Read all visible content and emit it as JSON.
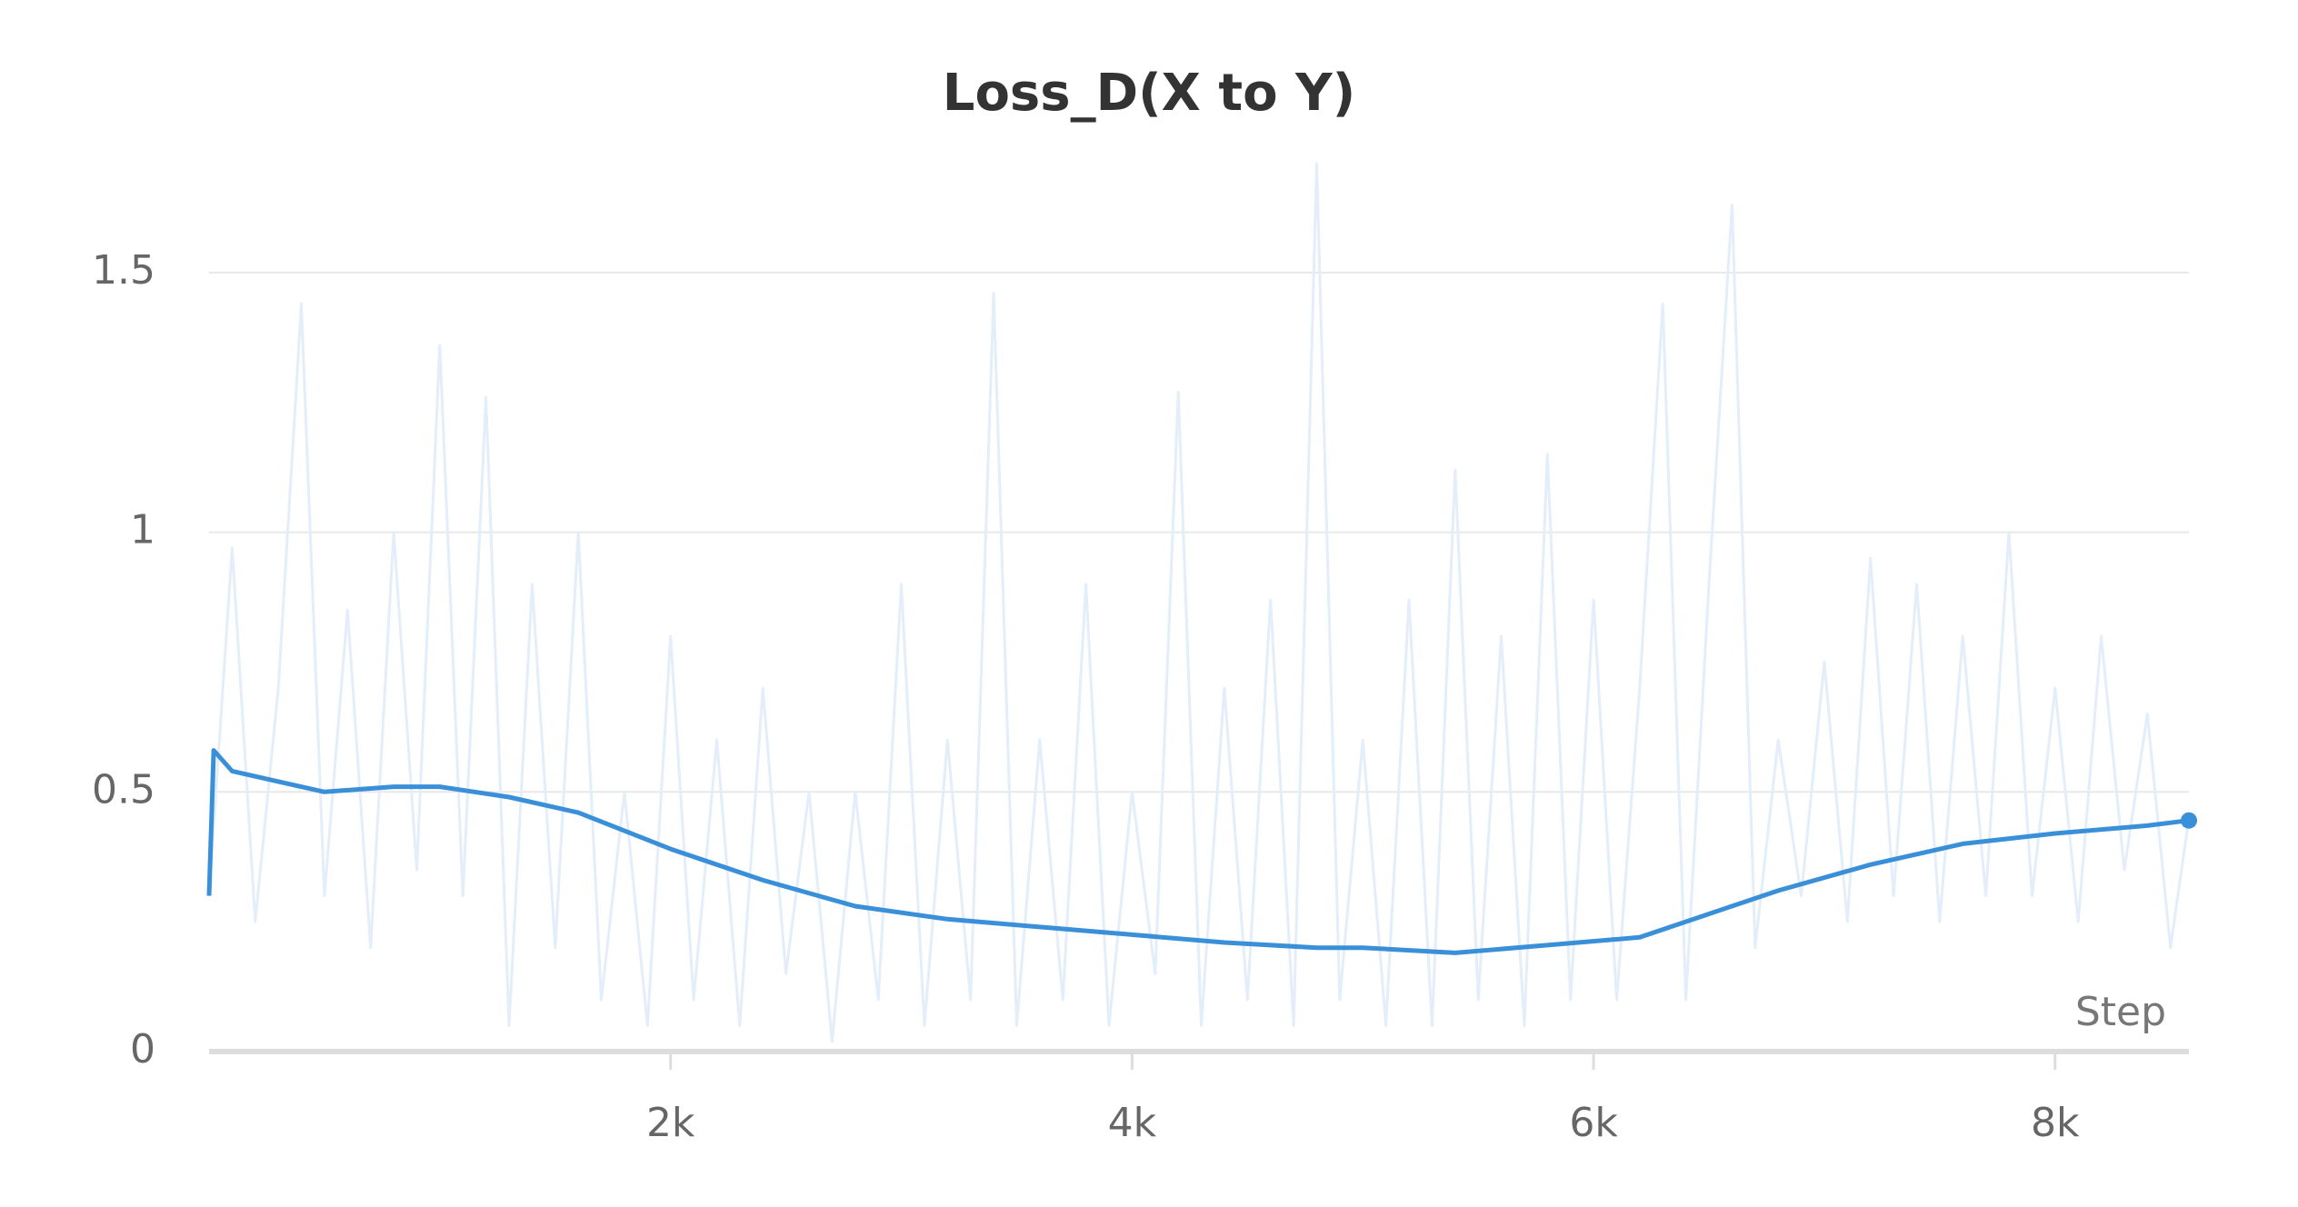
{
  "chart_data": {
    "type": "line",
    "title": "Loss_D(X to Y)",
    "x_label": "Step",
    "xlim": [
      0,
      8580
    ],
    "ylim": [
      0,
      1.75
    ],
    "xticks": [
      {
        "value": 2000,
        "label": "2k"
      },
      {
        "value": 4000,
        "label": "4k"
      },
      {
        "value": 6000,
        "label": "6k"
      },
      {
        "value": 8000,
        "label": "8k"
      }
    ],
    "yticks": [
      0,
      0.5,
      1,
      1.5
    ],
    "grid": true,
    "series": [
      {
        "color": "#e3eefa",
        "x": [
          0,
          100,
          200,
          300,
          400,
          500,
          600,
          700,
          800,
          900,
          1000,
          1100,
          1200,
          1300,
          1400,
          1500,
          1600,
          1700,
          1800,
          1900,
          2000,
          2100,
          2200,
          2300,
          2400,
          2500,
          2600,
          2700,
          2800,
          2900,
          3000,
          3100,
          3200,
          3300,
          3400,
          3500,
          3600,
          3700,
          3800,
          3900,
          4000,
          4100,
          4200,
          4300,
          4400,
          4500,
          4600,
          4700,
          4800,
          4900,
          5000,
          5100,
          5200,
          5300,
          5400,
          5500,
          5600,
          5700,
          5800,
          5900,
          6000,
          6100,
          6200,
          6300,
          6400,
          6500,
          6600,
          6700,
          6800,
          6900,
          7000,
          7100,
          7200,
          7300,
          7400,
          7500,
          7600,
          7700,
          7800,
          7900,
          8000,
          8100,
          8200,
          8300,
          8400,
          8500,
          8580
        ],
        "values": [
          0.3,
          0.97,
          0.25,
          0.7,
          1.44,
          0.3,
          0.85,
          0.2,
          1.0,
          0.35,
          1.36,
          0.3,
          1.26,
          0.05,
          0.9,
          0.2,
          1.0,
          0.1,
          0.5,
          0.05,
          0.8,
          0.1,
          0.6,
          0.05,
          0.7,
          0.15,
          0.5,
          0.02,
          0.5,
          0.1,
          0.9,
          0.05,
          0.6,
          0.1,
          1.46,
          0.05,
          0.6,
          0.1,
          0.9,
          0.05,
          0.5,
          0.15,
          1.27,
          0.05,
          0.7,
          0.1,
          0.87,
          0.05,
          1.71,
          0.1,
          0.6,
          0.05,
          0.87,
          0.05,
          1.12,
          0.1,
          0.8,
          0.05,
          1.15,
          0.1,
          0.87,
          0.1,
          0.7,
          1.44,
          0.1,
          0.9,
          1.63,
          0.2,
          0.6,
          0.3,
          0.75,
          0.25,
          0.95,
          0.3,
          0.9,
          0.25,
          0.8,
          0.3,
          1.0,
          0.3,
          0.7,
          0.25,
          0.8,
          0.35,
          0.65,
          0.2,
          0.45
        ]
      },
      {
        "color": "#3a8fd9",
        "x": [
          0,
          20,
          100,
          300,
          500,
          800,
          1000,
          1300,
          1600,
          2000,
          2400,
          2800,
          3200,
          3600,
          4000,
          4400,
          4800,
          5000,
          5400,
          5800,
          6200,
          6400,
          6800,
          7200,
          7600,
          8000,
          8400,
          8580
        ],
        "values": [
          0.3,
          0.58,
          0.54,
          0.52,
          0.5,
          0.51,
          0.51,
          0.49,
          0.46,
          0.39,
          0.33,
          0.28,
          0.255,
          0.24,
          0.225,
          0.21,
          0.2,
          0.2,
          0.19,
          0.205,
          0.22,
          0.25,
          0.31,
          0.36,
          0.4,
          0.42,
          0.435,
          0.445
        ]
      }
    ]
  }
}
